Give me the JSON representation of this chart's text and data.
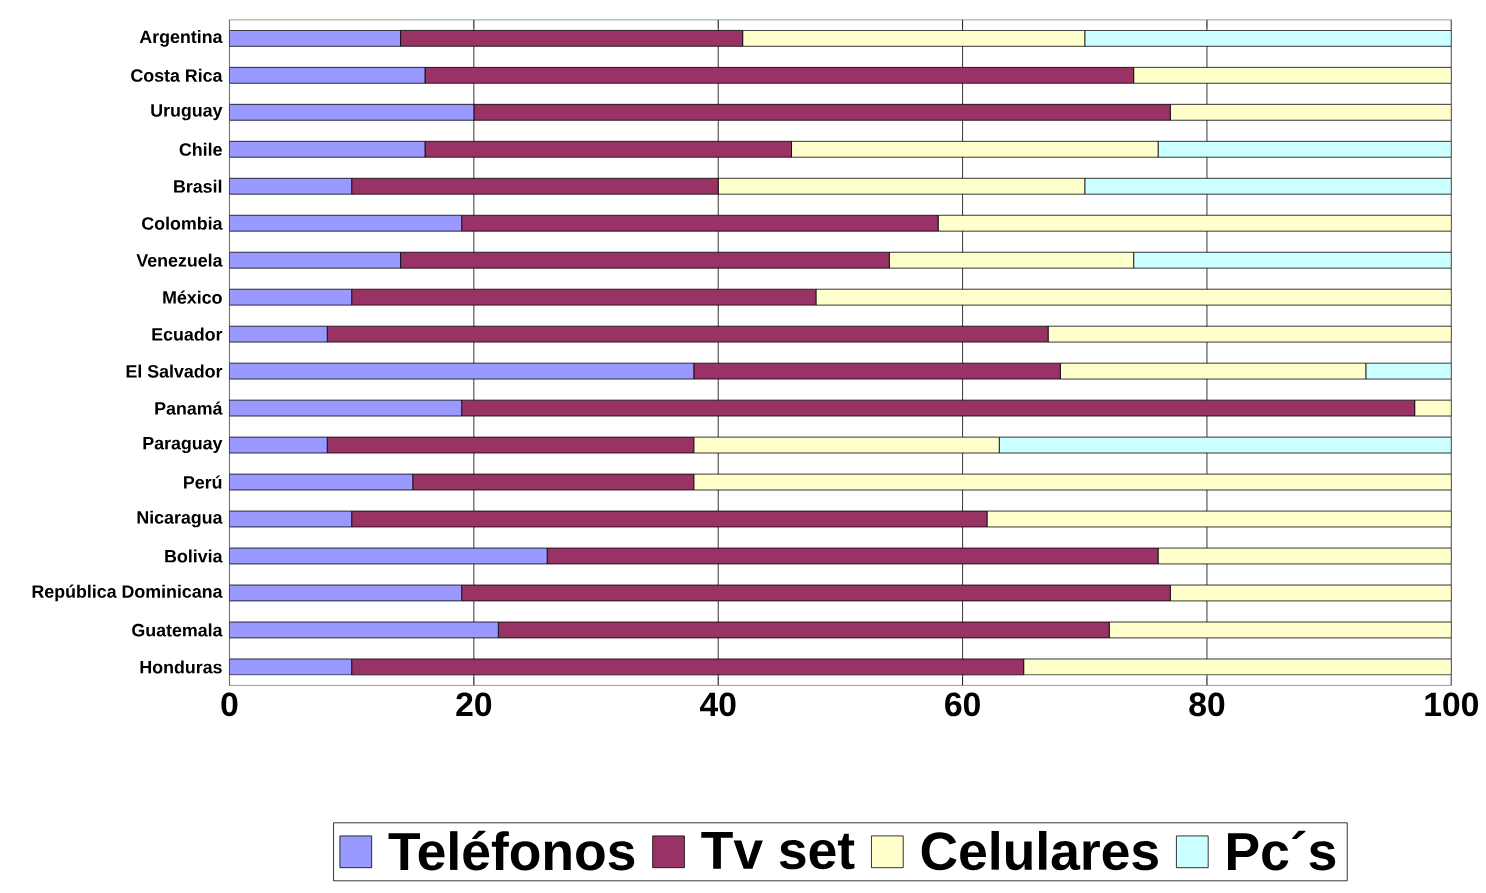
{
  "chart_data": {
    "type": "bar",
    "orientation": "horizontal",
    "stacked": true,
    "categories": [
      "Argentina",
      "Costa Rica",
      "Uruguay",
      "Chile",
      "Brasil",
      "Colombia",
      "Venezuela",
      "México",
      "Ecuador",
      "El Salvador",
      "Panamá",
      "Paraguay",
      "Perú",
      "Nicaragua",
      "Bolivia",
      "República Dominicana",
      "Guatemala",
      "Honduras"
    ],
    "series": [
      {
        "name": "Teléfonos",
        "color": "#9999ff",
        "values": [
          14,
          16,
          20,
          16,
          10,
          19,
          14,
          10,
          8,
          38,
          19,
          8,
          15,
          10,
          26,
          19,
          22,
          10
        ]
      },
      {
        "name": "Tv set",
        "color": "#993366",
        "values": [
          28,
          58,
          57,
          30,
          30,
          39,
          40,
          38,
          59,
          30,
          78,
          30,
          23,
          52,
          50,
          58,
          50,
          55
        ]
      },
      {
        "name": "Celulares",
        "color": "#ffffcc",
        "values": [
          28,
          26,
          23,
          30,
          30,
          42,
          20,
          52,
          33,
          25,
          3,
          25,
          62,
          38,
          24,
          23,
          28,
          35
        ]
      },
      {
        "name": "Pc´s",
        "color": "#ccffff",
        "values": [
          30,
          0,
          0,
          24,
          30,
          0,
          26,
          0,
          0,
          7,
          0,
          37,
          0,
          0,
          0,
          0,
          0,
          0
        ]
      }
    ],
    "xlim": [
      0,
      100
    ],
    "xticks": [
      0,
      20,
      40,
      60,
      80,
      100
    ],
    "grid": "x",
    "legend": "bottom"
  }
}
